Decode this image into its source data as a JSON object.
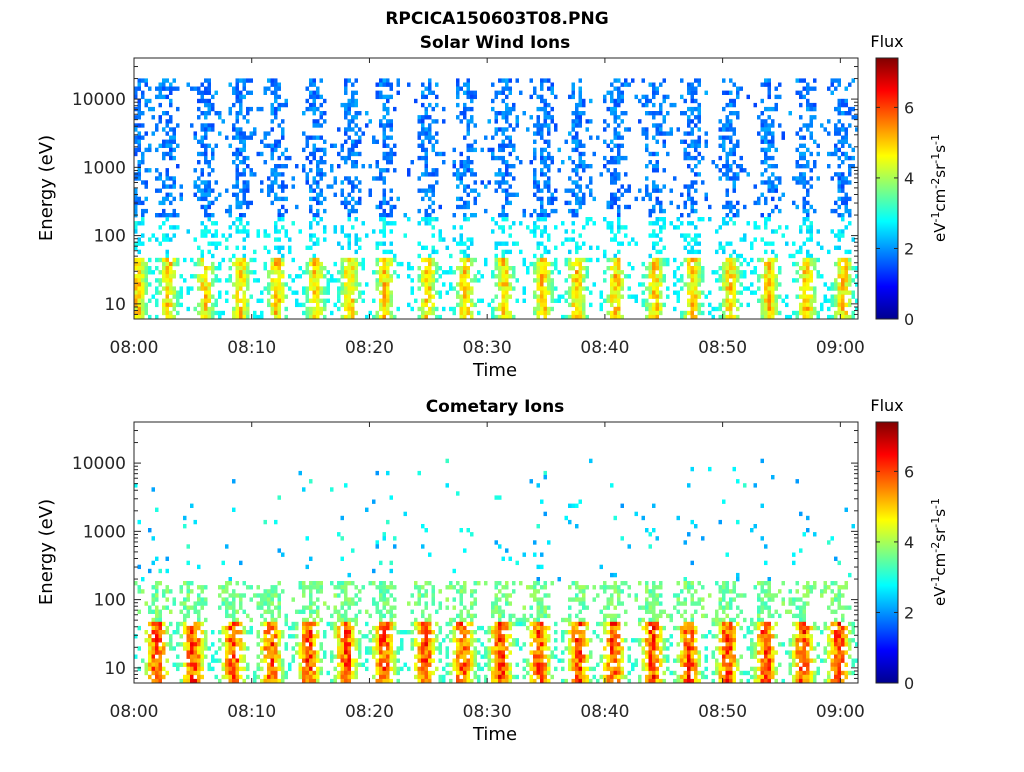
{
  "figure": {
    "title": "RPCICA150603T08.PNG"
  },
  "chart_data": [
    {
      "type": "heatmap",
      "title": "Solar Wind Ions",
      "xlabel": "Time",
      "ylabel": "Energy (eV)",
      "x_tick_labels": [
        "08:00",
        "08:10",
        "08:20",
        "08:30",
        "08:40",
        "08:50",
        "09:00"
      ],
      "x_ticks_minutes": [
        0,
        10,
        20,
        30,
        40,
        50,
        60
      ],
      "xlim_minutes": [
        0,
        61.5
      ],
      "y_scale": "log",
      "y_tick_labels": [
        "10",
        "100",
        "1000",
        "10000"
      ],
      "y_ticks": [
        10,
        100,
        1000,
        10000
      ],
      "ylim": [
        6,
        40000
      ],
      "colorbar": {
        "title": "Flux",
        "label": "eV-1cm-2sr-1s-1",
        "ticks": [
          0,
          2,
          4,
          6
        ],
        "range": [
          0,
          7.4
        ],
        "colormap": "jet"
      },
      "pattern": {
        "burst_centers_minutes": [
          0.2,
          2.8,
          5.9,
          8.9,
          12.0,
          15.3,
          18.2,
          21.2,
          24.8,
          28.0,
          31.3,
          34.6,
          37.5,
          40.8,
          44.1,
          47.3,
          50.5,
          53.8,
          57.0,
          60.1
        ],
        "bursts": 20,
        "low_energy_peak_flux": 5.6,
        "low_energy_upper_ev": 45,
        "high_energy_flux": 1.4,
        "high_energy_range_ev": [
          100,
          20000
        ]
      }
    },
    {
      "type": "heatmap",
      "title": "Cometary Ions",
      "xlabel": "Time",
      "ylabel": "Energy (eV)",
      "x_tick_labels": [
        "08:00",
        "08:10",
        "08:20",
        "08:30",
        "08:40",
        "08:50",
        "09:00"
      ],
      "x_ticks_minutes": [
        0,
        10,
        20,
        30,
        40,
        50,
        60
      ],
      "xlim_minutes": [
        0,
        61.5
      ],
      "y_scale": "log",
      "y_tick_labels": [
        "10",
        "100",
        "1000",
        "10000"
      ],
      "y_ticks": [
        10,
        100,
        1000,
        10000
      ],
      "ylim": [
        6,
        40000
      ],
      "colorbar": {
        "title": "Flux",
        "label": "eV-1cm-2sr-1s-1",
        "ticks": [
          0,
          2,
          4,
          6
        ],
        "range": [
          0,
          7.4
        ],
        "colormap": "jet"
      },
      "pattern": {
        "burst_centers_minutes": [
          1.8,
          4.9,
          8.3,
          11.5,
          14.7,
          17.9,
          21.1,
          24.6,
          27.8,
          31.0,
          34.3,
          37.6,
          40.6,
          43.9,
          47.0,
          50.3,
          53.5,
          56.7,
          59.7
        ],
        "bursts": 19,
        "low_energy_peak_flux": 6.6,
        "low_energy_upper_ev": 45,
        "mid_energy_flux": 3.2,
        "mid_energy_range_ev": [
          45,
          200
        ],
        "sparse_high_energy_flux": 2.0,
        "sparse_high_energy_range_ev": [
          200,
          15000
        ]
      }
    }
  ]
}
